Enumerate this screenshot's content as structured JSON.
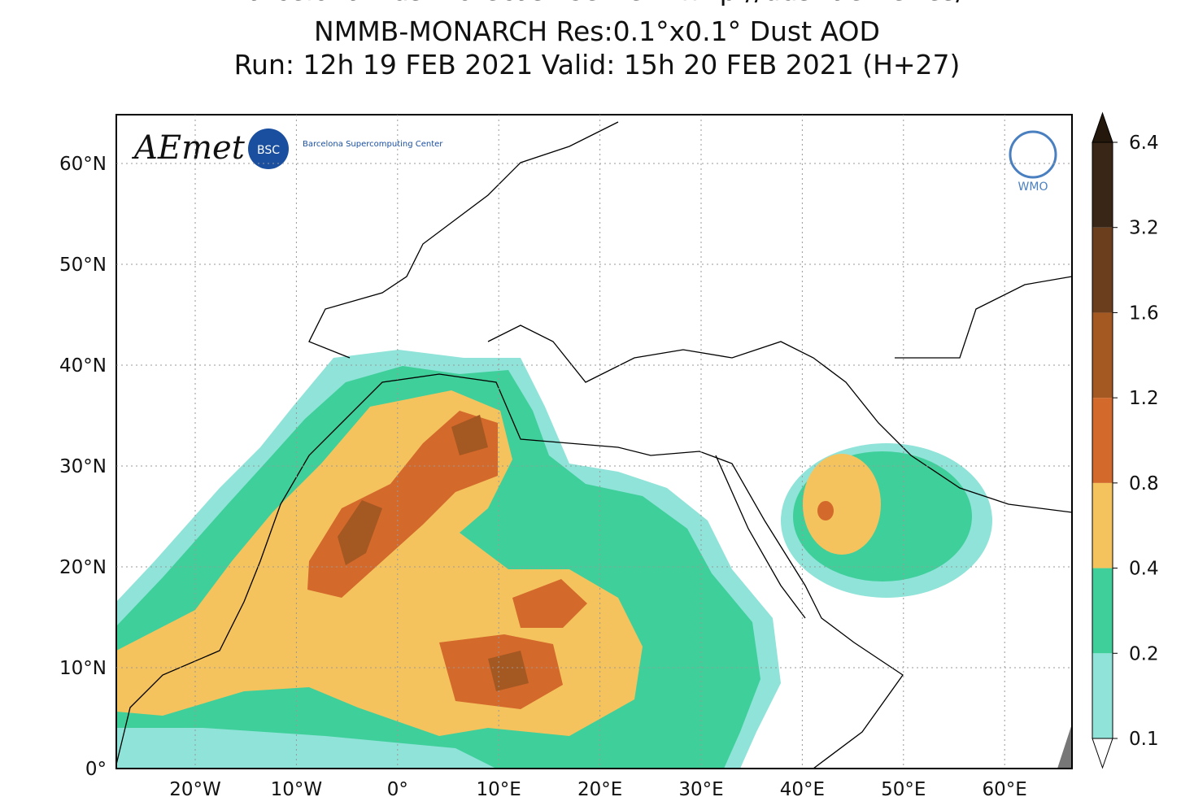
{
  "header": {
    "lines": [
      "Barcelona Dust Forecast Center - http://dust.aemet.es/",
      "NMMB-MONARCH   Res:0.1°x0.1°   Dust AOD",
      "Run: 12h 19 FEB 2021   Valid: 15h 20 FEB 2021 (H+27)"
    ]
  },
  "map": {
    "lat_labels": [
      "60°N",
      "50°N",
      "40°N",
      "30°N",
      "20°N",
      "10°N",
      "0°"
    ],
    "lon_labels": [
      "20°W",
      "10°W",
      "0°",
      "10°E",
      "20°E",
      "30°E",
      "40°E",
      "50°E",
      "60°E"
    ]
  },
  "colorbar": {
    "labels": [
      "0.1",
      "0.2",
      "0.4",
      "0.8",
      "1.2",
      "1.6",
      "3.2",
      "6.4"
    ],
    "colors": [
      "#ffffff",
      "#8fe3d8",
      "#3fcf9a",
      "#f5c35e",
      "#d3692b",
      "#a45822",
      "#6b3e1e",
      "#3a2616",
      "#24170c"
    ]
  },
  "logos": {
    "aemet": "AEmet",
    "bsc": "BSC",
    "bsc_name": "Barcelona Supercomputing Center",
    "wmo": "WMO"
  }
}
